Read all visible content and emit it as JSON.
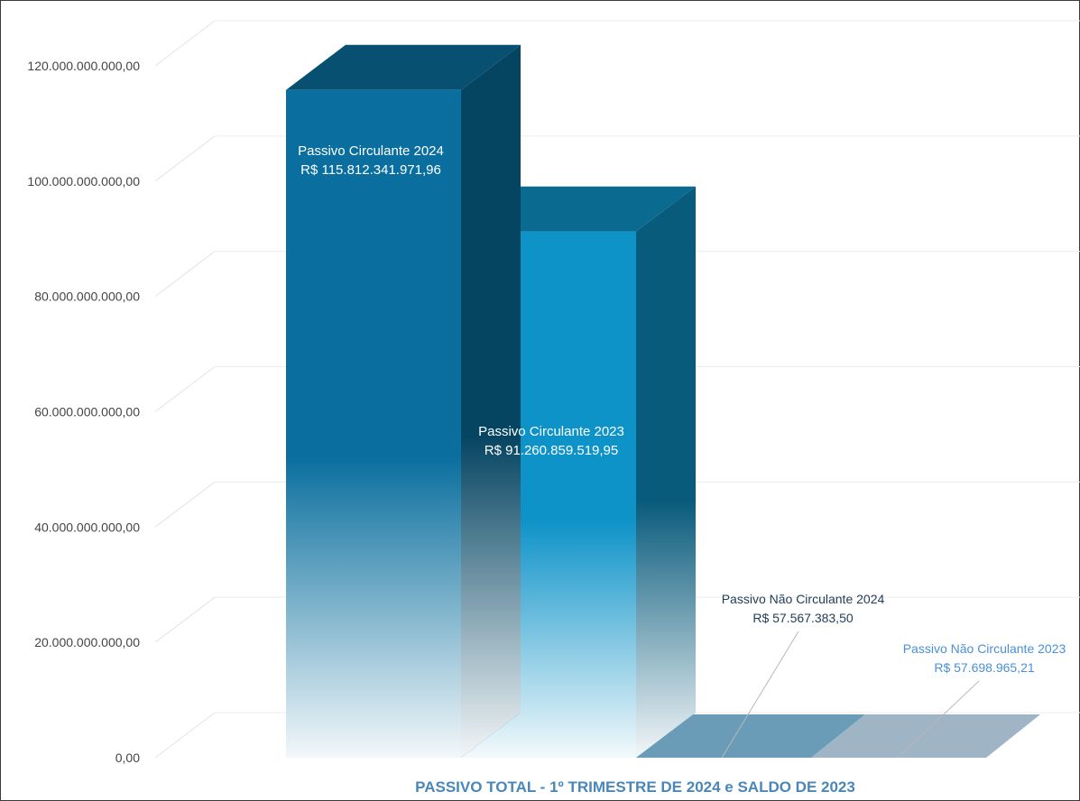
{
  "chart_data": {
    "type": "bar",
    "title": "PASSIVO TOTAL - 1º TRIMESTRE DE 2024 e SALDO DE 2023",
    "ylim": [
      0,
      120000000000
    ],
    "yticks": [
      "0,00",
      "20.000.000.000,00",
      "40.000.000.000,00",
      "60.000.000.000,00",
      "80.000.000.000,00",
      "100.000.000.000,00",
      "120.000.000.000,00"
    ],
    "grid": true,
    "bars": [
      {
        "name": "Passivo Circulante 2024",
        "value": 115812341971.96,
        "value_label": "R$ 115.812.341.971,96",
        "color": "#0a6f9e"
      },
      {
        "name": "Passivo Circulante 2023",
        "value": 91260859519.95,
        "value_label": "R$ 91.260.859.519,95",
        "color": "#0e93c8"
      },
      {
        "name": "Passivo Não Circulante 2024",
        "value": 57567383.5,
        "value_label": "R$ 57.567.383,50",
        "color": "#6a9cb8"
      },
      {
        "name": "Passivo Não Circulante 2023",
        "value": 57698965.21,
        "value_label": "R$ 57.698.965,21",
        "color": "#9fb4c4"
      }
    ]
  }
}
